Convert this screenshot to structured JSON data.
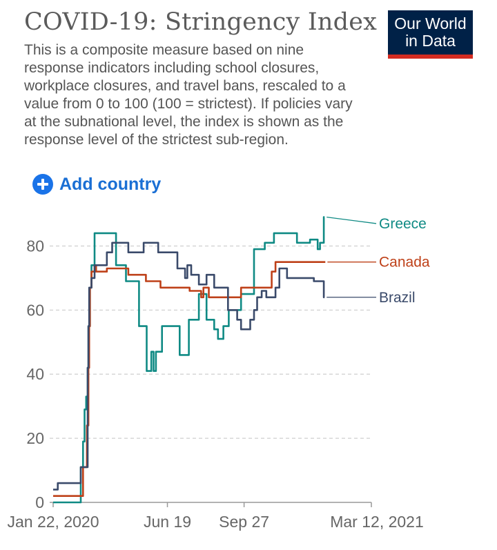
{
  "header": {
    "title": "COVID-19: Stringency Index",
    "subtitle": "This is a composite measure based on nine response indicators including school closures, workplace closures, and travel bans, rescaled to a value from 0 to 100 (100 = strictest). If policies vary at the subnational level, the index is shown as the response level of the strictest sub-region."
  },
  "logo": {
    "line1": "Our World",
    "line2": "in Data"
  },
  "controls": {
    "add_country_label": "Add country"
  },
  "chart_data": {
    "type": "line",
    "title": "COVID-19: Stringency Index",
    "xlabel": "",
    "ylabel": "",
    "x_unit": "days since Jan 22, 2020",
    "xlim": [
      0,
      415
    ],
    "ylim": [
      0,
      90
    ],
    "y_ticks": [
      0,
      20,
      40,
      60,
      80
    ],
    "x_ticks": [
      {
        "day": 0,
        "label": "Jan 22, 2020"
      },
      {
        "day": 149,
        "label": "Jun 19"
      },
      {
        "day": 249,
        "label": "Sep 27"
      },
      {
        "day": 415,
        "label": "Mar 12, 2021"
      }
    ],
    "grid": "horizontal-dashed",
    "series": [
      {
        "name": "Greece",
        "color": "#0f8a84",
        "points": [
          [
            0,
            0
          ],
          [
            36,
            0
          ],
          [
            36,
            11
          ],
          [
            39,
            11
          ],
          [
            39,
            19
          ],
          [
            41,
            19
          ],
          [
            41,
            29
          ],
          [
            43,
            29
          ],
          [
            43,
            33
          ],
          [
            45,
            33
          ],
          [
            45,
            42
          ],
          [
            46,
            42
          ],
          [
            46,
            55
          ],
          [
            48,
            55
          ],
          [
            48,
            67
          ],
          [
            50,
            67
          ],
          [
            50,
            74
          ],
          [
            54,
            74
          ],
          [
            54,
            84
          ],
          [
            82,
            84
          ],
          [
            82,
            74
          ],
          [
            95,
            74
          ],
          [
            95,
            69
          ],
          [
            112,
            69
          ],
          [
            112,
            55
          ],
          [
            122,
            55
          ],
          [
            122,
            41
          ],
          [
            128,
            41
          ],
          [
            128,
            47
          ],
          [
            131,
            47
          ],
          [
            131,
            41
          ],
          [
            134,
            41
          ],
          [
            134,
            47
          ],
          [
            142,
            47
          ],
          [
            142,
            55
          ],
          [
            165,
            55
          ],
          [
            165,
            46
          ],
          [
            177,
            46
          ],
          [
            177,
            57
          ],
          [
            190,
            57
          ],
          [
            190,
            65
          ],
          [
            200,
            65
          ],
          [
            200,
            57
          ],
          [
            210,
            57
          ],
          [
            210,
            54
          ],
          [
            215,
            54
          ],
          [
            215,
            51
          ],
          [
            222,
            51
          ],
          [
            222,
            55
          ],
          [
            229,
            55
          ],
          [
            229,
            60
          ],
          [
            245,
            60
          ],
          [
            245,
            65
          ],
          [
            262,
            65
          ],
          [
            262,
            79
          ],
          [
            276,
            79
          ],
          [
            276,
            81
          ],
          [
            288,
            81
          ],
          [
            288,
            84
          ],
          [
            318,
            84
          ],
          [
            318,
            81
          ],
          [
            335,
            81
          ],
          [
            335,
            82
          ],
          [
            345,
            82
          ],
          [
            345,
            79
          ],
          [
            348,
            79
          ],
          [
            348,
            81
          ],
          [
            353,
            81
          ],
          [
            353,
            89
          ],
          [
            354,
            89
          ]
        ]
      },
      {
        "name": "Canada",
        "color": "#be4018",
        "points": [
          [
            0,
            2
          ],
          [
            39,
            2
          ],
          [
            39,
            11
          ],
          [
            44,
            11
          ],
          [
            44,
            24
          ],
          [
            46,
            24
          ],
          [
            46,
            42
          ],
          [
            47,
            42
          ],
          [
            47,
            55
          ],
          [
            48,
            55
          ],
          [
            48,
            67
          ],
          [
            50,
            67
          ],
          [
            50,
            72
          ],
          [
            54,
            72
          ],
          [
            54,
            74
          ],
          [
            56,
            74
          ],
          [
            56,
            72
          ],
          [
            70,
            72
          ],
          [
            70,
            73
          ],
          [
            98,
            73
          ],
          [
            98,
            71
          ],
          [
            121,
            71
          ],
          [
            121,
            69
          ],
          [
            140,
            69
          ],
          [
            140,
            67
          ],
          [
            178,
            67
          ],
          [
            178,
            66
          ],
          [
            193,
            66
          ],
          [
            193,
            64
          ],
          [
            196,
            64
          ],
          [
            196,
            67
          ],
          [
            203,
            67
          ],
          [
            203,
            64
          ],
          [
            245,
            64
          ],
          [
            245,
            67
          ],
          [
            285,
            67
          ],
          [
            285,
            72
          ],
          [
            290,
            72
          ],
          [
            290,
            75
          ],
          [
            355,
            75
          ]
        ]
      },
      {
        "name": "Brazil",
        "color": "#3a4a6a",
        "points": [
          [
            0,
            4
          ],
          [
            6,
            4
          ],
          [
            6,
            6
          ],
          [
            36,
            6
          ],
          [
            36,
            11
          ],
          [
            45,
            11
          ],
          [
            45,
            42
          ],
          [
            46,
            42
          ],
          [
            46,
            55
          ],
          [
            47,
            55
          ],
          [
            47,
            67
          ],
          [
            50,
            67
          ],
          [
            50,
            70
          ],
          [
            54,
            70
          ],
          [
            54,
            74
          ],
          [
            70,
            74
          ],
          [
            70,
            78
          ],
          [
            77,
            78
          ],
          [
            77,
            81
          ],
          [
            98,
            81
          ],
          [
            98,
            78
          ],
          [
            118,
            78
          ],
          [
            118,
            81
          ],
          [
            137,
            81
          ],
          [
            137,
            78
          ],
          [
            162,
            78
          ],
          [
            162,
            73
          ],
          [
            172,
            73
          ],
          [
            172,
            70
          ],
          [
            175,
            70
          ],
          [
            175,
            74
          ],
          [
            180,
            74
          ],
          [
            180,
            71
          ],
          [
            190,
            71
          ],
          [
            190,
            68
          ],
          [
            200,
            68
          ],
          [
            200,
            71
          ],
          [
            210,
            71
          ],
          [
            210,
            67
          ],
          [
            228,
            67
          ],
          [
            228,
            60
          ],
          [
            240,
            60
          ],
          [
            240,
            57
          ],
          [
            245,
            57
          ],
          [
            245,
            54
          ],
          [
            257,
            54
          ],
          [
            257,
            57
          ],
          [
            262,
            57
          ],
          [
            262,
            60
          ],
          [
            266,
            60
          ],
          [
            266,
            64
          ],
          [
            272,
            64
          ],
          [
            272,
            66
          ],
          [
            278,
            66
          ],
          [
            278,
            64
          ],
          [
            290,
            64
          ],
          [
            290,
            67
          ],
          [
            295,
            67
          ],
          [
            295,
            73
          ],
          [
            305,
            73
          ],
          [
            305,
            70
          ],
          [
            340,
            70
          ],
          [
            340,
            69
          ],
          [
            353,
            69
          ],
          [
            353,
            64
          ],
          [
            354,
            64
          ]
        ]
      }
    ]
  }
}
